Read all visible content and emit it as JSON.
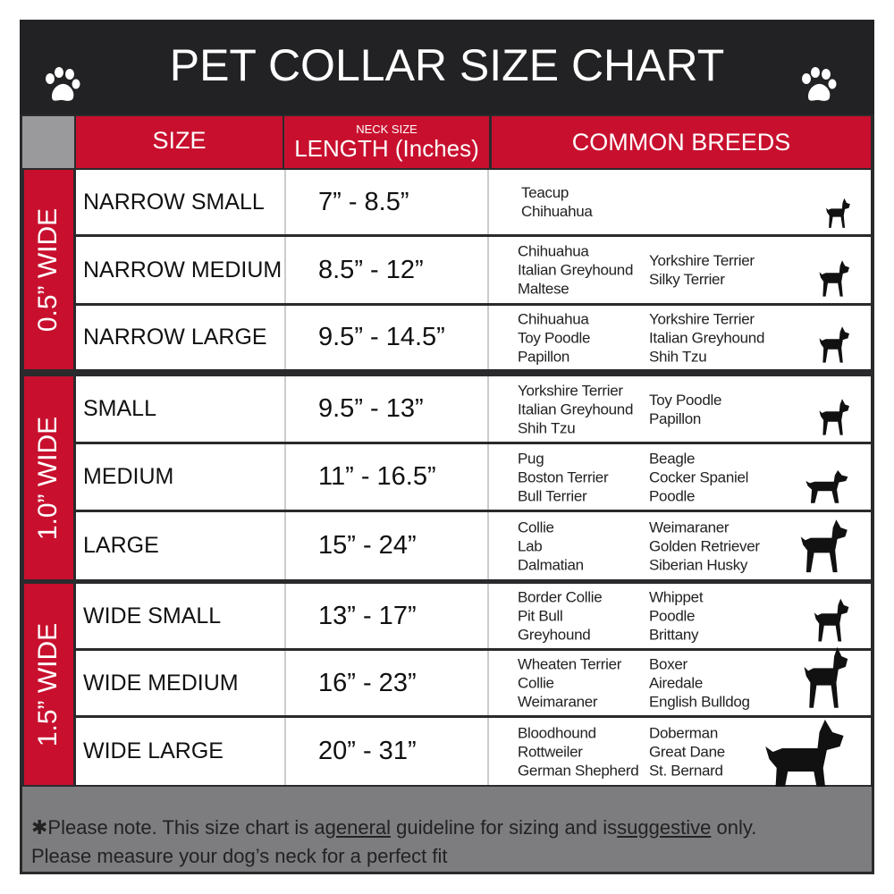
{
  "title": "PET COLLAR SIZE CHART",
  "colors": {
    "header_bg": "#222224",
    "accent_red": "#c8102e",
    "footer_gray": "#7d7d80"
  },
  "headers": {
    "size": "SIZE",
    "neck_small": "NECK SIZE",
    "length": "LENGTH (Inches)",
    "breeds": "COMMON BREEDS"
  },
  "groups": [
    "0.5” WIDE",
    "1.0” WIDE",
    "1.5” WIDE"
  ],
  "rows": [
    {
      "size": "NARROW SMALL",
      "length": "7” - 8.5”",
      "col1": [
        "Teacup",
        "Chihuahua"
      ],
      "col2": [],
      "icon": "yorkie-silhouette-icon"
    },
    {
      "size": "NARROW MEDIUM",
      "length": "8.5” - 12”",
      "col1": [
        "Chihuahua",
        "Italian Greyhound",
        "Maltese"
      ],
      "col2": [
        "Yorkshire Terrier",
        "Silky Terrier"
      ],
      "icon": "chihuahua-silhouette-icon"
    },
    {
      "size": "NARROW LARGE",
      "length": "9.5” - 14.5”",
      "col1": [
        "Chihuahua",
        "Toy Poodle",
        "Papillon"
      ],
      "col2": [
        "Yorkshire Terrier",
        "Italian Greyhound",
        "Shih Tzu"
      ],
      "icon": "pomeranian-silhouette-icon"
    },
    {
      "size": "SMALL",
      "length": "9.5” - 13”",
      "col1": [
        "Yorkshire Terrier",
        "Italian Greyhound",
        "Shih Tzu"
      ],
      "col2": [
        "Toy Poodle",
        "Papillon"
      ],
      "icon": "pomeranian-silhouette-icon"
    },
    {
      "size": "MEDIUM",
      "length": "11” - 16.5”",
      "col1": [
        "Pug",
        "Boston Terrier",
        "Bull Terrier"
      ],
      "col2": [
        "Beagle",
        "Cocker Spaniel",
        "Poodle"
      ],
      "icon": "dachshund-silhouette-icon"
    },
    {
      "size": "LARGE",
      "length": "15” - 24”",
      "col1": [
        "Collie",
        "Lab",
        "Dalmatian"
      ],
      "col2": [
        "Weimaraner",
        "Golden Retriever",
        "Siberian Husky"
      ],
      "icon": "shepherd-silhouette-icon"
    },
    {
      "size": "WIDE SMALL",
      "length": "13” - 17”",
      "col1": [
        "Border Collie",
        "Pit Bull",
        "Greyhound"
      ],
      "col2": [
        "Whippet",
        "Poodle",
        "Brittany"
      ],
      "icon": "bulldog-silhouette-icon"
    },
    {
      "size": "WIDE MEDIUM",
      "length": "16” - 23”",
      "col1": [
        "Wheaten Terrier",
        "Collie",
        "Weimaraner"
      ],
      "col2": [
        "Boxer",
        "Airedale",
        "English Bulldog"
      ],
      "icon": "pitbull-silhouette-icon"
    },
    {
      "size": "WIDE LARGE",
      "length": "20” - 31”",
      "col1": [
        "Bloodhound",
        "Rottweiler",
        "German Shepherd"
      ],
      "col2": [
        "Doberman",
        "Great Dane",
        "St. Bernard"
      ],
      "icon": "doberman-silhouette-icon"
    }
  ],
  "footer": {
    "p1": "✱Please note. This size chart is a",
    "u1": "general",
    "p2": " guideline for sizing and is",
    "u2": "suggestive",
    "p3": " only.",
    "line2": "Please measure your dog’s neck for a perfect fit"
  }
}
